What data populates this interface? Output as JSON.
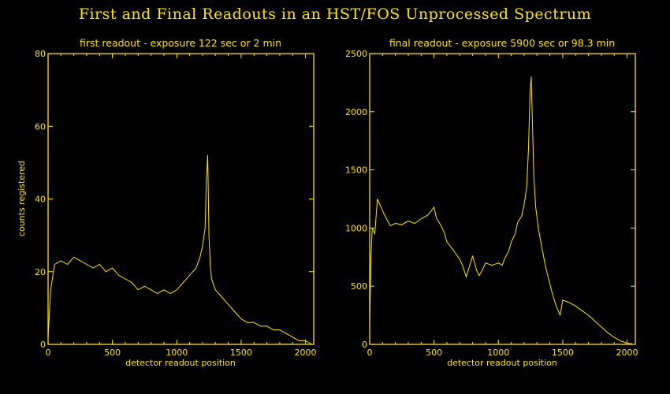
{
  "figure_title": "First and Final Readouts in an HST/FOS Unprocessed Spectrum",
  "colors": {
    "background": "#000000",
    "foreground": "#FFE500"
  },
  "chart_data": [
    {
      "type": "line",
      "title": "first readout - exposure 122 sec or 2 min",
      "xlabel": "detector readout position",
      "ylabel": "counts registered",
      "xlim": [
        0,
        2064
      ],
      "ylim": [
        0,
        80
      ],
      "xticks": [
        0,
        500,
        1000,
        1500,
        2000
      ],
      "yticks": [
        0,
        20,
        40,
        60,
        80
      ],
      "xtick_labels": [
        "0",
        "500",
        "1000",
        "1500",
        "2000"
      ],
      "ytick_labels": [
        "0",
        "20",
        "40",
        "60",
        "80"
      ],
      "grid": false,
      "series": [
        {
          "x": [
            0,
            20,
            50,
            100,
            150,
            200,
            250,
            300,
            350,
            400,
            450,
            500,
            550,
            600,
            650,
            700,
            750,
            800,
            850,
            900,
            950,
            1000,
            1050,
            1100,
            1150,
            1180,
            1200,
            1220,
            1230,
            1240,
            1250,
            1260,
            1270,
            1300,
            1350,
            1400,
            1450,
            1500,
            1550,
            1600,
            1650,
            1700,
            1750,
            1800,
            1850,
            1900,
            1950,
            2000,
            2050
          ],
          "values": [
            2,
            15,
            22,
            23,
            22,
            24,
            23,
            22,
            21,
            22,
            20,
            21,
            19,
            18,
            17,
            15,
            16,
            15,
            14,
            15,
            14,
            15,
            17,
            19,
            21,
            24,
            27,
            32,
            45,
            52,
            30,
            22,
            18,
            15,
            13,
            11,
            9,
            7,
            6,
            6,
            5,
            5,
            4,
            4,
            3,
            2,
            1,
            1,
            0
          ]
        }
      ]
    },
    {
      "type": "line",
      "title": "final readout - exposure 5900 sec or 98.3 min",
      "xlabel": "detector readout position",
      "ylabel": "",
      "xlim": [
        0,
        2064
      ],
      "ylim": [
        0,
        2500
      ],
      "xticks": [
        0,
        500,
        1000,
        1500,
        2000
      ],
      "yticks": [
        0,
        500,
        1000,
        1500,
        2000,
        2500
      ],
      "xtick_labels": [
        "0",
        "500",
        "1000",
        "1500",
        "2000"
      ],
      "ytick_labels": [
        "0",
        "500",
        "1000",
        "1500",
        "2000",
        "2500"
      ],
      "grid": false,
      "series": [
        {
          "x": [
            0,
            10,
            20,
            40,
            60,
            80,
            100,
            130,
            160,
            200,
            250,
            300,
            350,
            400,
            450,
            480,
            500,
            520,
            550,
            580,
            600,
            650,
            700,
            720,
            750,
            780,
            800,
            830,
            850,
            880,
            900,
            950,
            1000,
            1030,
            1050,
            1080,
            1100,
            1130,
            1150,
            1180,
            1200,
            1220,
            1235,
            1245,
            1255,
            1265,
            1275,
            1290,
            1310,
            1340,
            1370,
            1400,
            1420,
            1450,
            1480,
            1500,
            1550,
            1600,
            1650,
            1700,
            1750,
            1800,
            1850,
            1900,
            1950,
            2000,
            2040
          ],
          "values": [
            150,
            750,
            1000,
            950,
            1250,
            1200,
            1150,
            1080,
            1020,
            1040,
            1030,
            1060,
            1040,
            1080,
            1110,
            1150,
            1180,
            1080,
            1030,
            960,
            880,
            810,
            730,
            680,
            580,
            690,
            760,
            640,
            590,
            650,
            700,
            680,
            700,
            680,
            740,
            800,
            880,
            950,
            1050,
            1100,
            1200,
            1350,
            1700,
            2150,
            2300,
            1900,
            1450,
            1180,
            1000,
            820,
            650,
            520,
            430,
            330,
            250,
            380,
            360,
            330,
            290,
            250,
            200,
            150,
            100,
            60,
            30,
            10,
            5
          ]
        }
      ]
    }
  ]
}
